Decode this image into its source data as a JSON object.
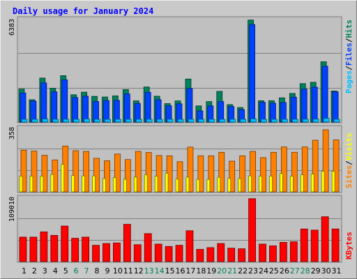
{
  "title": "Daily usage for January 2024",
  "colors": {
    "hits": "#00805c",
    "files": "#0040ff",
    "pages": "#00c0ff",
    "visits": "#ffff00",
    "sites": "#ff8000",
    "kbytes": "#ff0000",
    "title": "#0000ff",
    "weekend": "#00805c",
    "weekday": "#000000",
    "panel": "#c0c0c0"
  },
  "legend": {
    "pages": "Pages",
    "files": "Files",
    "hits": "Hits",
    "sites": "Sites",
    "visits": "Visits",
    "kbytes": "KBytes",
    "separator": "/"
  },
  "chart_data": [
    {
      "type": "bar",
      "title": "Daily usage for January 2024",
      "ymax_label": "6383",
      "ylim": [
        0,
        6383
      ],
      "categories": [
        "1",
        "2",
        "3",
        "4",
        "5",
        "6",
        "7",
        "8",
        "9",
        "10",
        "11",
        "12",
        "13",
        "14",
        "15",
        "16",
        "17",
        "18",
        "19",
        "20",
        "21",
        "22",
        "23",
        "24",
        "25",
        "26",
        "27",
        "28",
        "29",
        "30",
        "31"
      ],
      "weekend_days": [
        "6",
        "7",
        "13",
        "14",
        "20",
        "21",
        "27",
        "28"
      ],
      "series": [
        {
          "name": "Hits",
          "values": [
            2040,
            1380,
            2720,
            2090,
            2870,
            1690,
            1850,
            1590,
            1550,
            1620,
            2010,
            1310,
            2170,
            1600,
            1140,
            1310,
            2660,
            1000,
            1270,
            1900,
            1080,
            900,
            6310,
            1320,
            1320,
            1500,
            1770,
            2380,
            2460,
            3730,
            1920
          ]
        },
        {
          "name": "Files",
          "values": [
            1800,
            1300,
            2420,
            1870,
            2610,
            1520,
            1600,
            1270,
            1330,
            1340,
            1740,
            1150,
            1840,
            1380,
            1010,
            1130,
            2080,
            690,
            1000,
            1270,
            960,
            770,
            6030,
            1220,
            1170,
            1210,
            1540,
            2040,
            2160,
            3450,
            1870
          ]
        },
        {
          "name": "Pages",
          "values": [
            150,
            140,
            190,
            160,
            170,
            140,
            190,
            150,
            140,
            140,
            160,
            120,
            140,
            130,
            120,
            110,
            150,
            110,
            120,
            140,
            120,
            120,
            200,
            150,
            130,
            140,
            150,
            180,
            180,
            230,
            150
          ]
        }
      ]
    },
    {
      "type": "bar",
      "ymax_label": "358",
      "ylim": [
        0,
        358
      ],
      "categories": [
        "1",
        "2",
        "3",
        "4",
        "5",
        "6",
        "7",
        "8",
        "9",
        "10",
        "11",
        "12",
        "13",
        "14",
        "15",
        "16",
        "17",
        "18",
        "19",
        "20",
        "21",
        "22",
        "23",
        "24",
        "25",
        "26",
        "27",
        "28",
        "29",
        "30",
        "31"
      ],
      "series": [
        {
          "name": "Sites",
          "values": [
            235,
            230,
            206,
            180,
            258,
            232,
            228,
            189,
            175,
            213,
            182,
            228,
            222,
            205,
            203,
            170,
            252,
            203,
            203,
            223,
            173,
            203,
            228,
            193,
            223,
            253,
            223,
            253,
            291,
            350,
            293
          ]
        },
        {
          "name": "Visits",
          "values": [
            88,
            88,
            88,
            98,
            155,
            92,
            90,
            90,
            75,
            80,
            70,
            83,
            96,
            88,
            105,
            72,
            83,
            70,
            70,
            82,
            76,
            75,
            90,
            88,
            88,
            103,
            88,
            96,
            100,
            116,
            116
          ]
        }
      ]
    },
    {
      "type": "bar",
      "ymax_label": "109010",
      "ylim": [
        0,
        109010
      ],
      "categories": [
        "1",
        "2",
        "3",
        "4",
        "5",
        "6",
        "7",
        "8",
        "9",
        "10",
        "11",
        "12",
        "13",
        "14",
        "15",
        "16",
        "17",
        "18",
        "19",
        "20",
        "21",
        "22",
        "23",
        "24",
        "25",
        "26",
        "27",
        "28",
        "29",
        "30",
        "31"
      ],
      "series": [
        {
          "name": "KBytes",
          "values": [
            42000,
            42000,
            51000,
            45000,
            61000,
            40000,
            42000,
            28000,
            31000,
            32000,
            64000,
            29000,
            48000,
            30000,
            26000,
            28000,
            53000,
            21000,
            24000,
            31000,
            23000,
            22000,
            108000,
            30000,
            27000,
            33000,
            34000,
            56000,
            54000,
            77000,
            56000
          ]
        }
      ]
    }
  ]
}
